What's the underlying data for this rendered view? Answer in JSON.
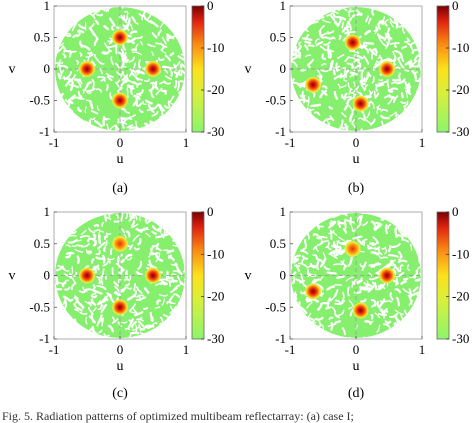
{
  "figure": {
    "caption": "Fig. 5. Radiation patterns of optimized multibeam reflectarray: (a) case I;"
  },
  "chart_data": [
    {
      "type": "heatmap",
      "panel_label": "(a)",
      "xlabel": "u",
      "ylabel": "v",
      "xlim": [
        -1,
        1
      ],
      "ylim": [
        -1,
        1
      ],
      "xticks": [
        "-1",
        "0",
        "1"
      ],
      "yticks": [
        "1",
        "0.5",
        "0",
        "-0.5",
        "-1"
      ],
      "colorbar": {
        "ticks": [
          "0",
          "-10",
          "-20",
          "-30"
        ],
        "range": [
          -30,
          0
        ]
      },
      "beams": [
        {
          "u": 0.0,
          "v": 0.5,
          "level_db": 0
        },
        {
          "u": -0.5,
          "v": 0.0,
          "level_db": 0
        },
        {
          "u": 0.5,
          "v": 0.0,
          "level_db": 0
        },
        {
          "u": 0.0,
          "v": -0.5,
          "level_db": 0
        }
      ],
      "dashed_crosshair": true
    },
    {
      "type": "heatmap",
      "panel_label": "(b)",
      "xlabel": "u",
      "ylabel": "v",
      "xlim": [
        -1,
        1
      ],
      "ylim": [
        -1,
        1
      ],
      "xticks": [
        "-1",
        "0",
        "1"
      ],
      "yticks": [
        "1",
        "0.5",
        "0",
        "-0.5",
        "-1"
      ],
      "colorbar": {
        "ticks": [
          "0",
          "-10",
          "-20",
          "-30"
        ],
        "range": [
          -30,
          0
        ]
      },
      "beams": [
        {
          "u": -0.05,
          "v": 0.42,
          "level_db": 0
        },
        {
          "u": -0.65,
          "v": -0.25,
          "level_db": 0
        },
        {
          "u": 0.47,
          "v": 0.0,
          "level_db": 0
        },
        {
          "u": 0.07,
          "v": -0.55,
          "level_db": 0
        }
      ],
      "dashed_crosshair": true
    },
    {
      "type": "heatmap",
      "panel_label": "(c)",
      "xlabel": "u",
      "ylabel": "v",
      "xlim": [
        -1,
        1
      ],
      "ylim": [
        -1,
        1
      ],
      "xticks": [
        "-1",
        "0",
        "1"
      ],
      "yticks": [
        "1",
        "0.5",
        "0",
        "-0.5",
        "-1"
      ],
      "colorbar": {
        "ticks": [
          "0",
          "-10",
          "-20",
          "-30"
        ],
        "range": [
          -30,
          0
        ]
      },
      "beams": [
        {
          "u": 0.0,
          "v": 0.5,
          "level_db": -6
        },
        {
          "u": -0.5,
          "v": 0.0,
          "level_db": 0
        },
        {
          "u": 0.5,
          "v": 0.0,
          "level_db": 0
        },
        {
          "u": 0.0,
          "v": -0.5,
          "level_db": 0
        }
      ],
      "dashed_crosshair": true
    },
    {
      "type": "heatmap",
      "panel_label": "(d)",
      "xlabel": "u",
      "ylabel": "v",
      "xlim": [
        -1,
        1
      ],
      "ylim": [
        -1,
        1
      ],
      "xticks": [
        "-1",
        "0",
        "1"
      ],
      "yticks": [
        "1",
        "0.5",
        "0",
        "-0.5",
        "-1"
      ],
      "colorbar": {
        "ticks": [
          "0",
          "-10",
          "-20",
          "-30"
        ],
        "range": [
          -30,
          0
        ]
      },
      "beams": [
        {
          "u": -0.05,
          "v": 0.42,
          "level_db": -6
        },
        {
          "u": -0.65,
          "v": -0.25,
          "level_db": 0
        },
        {
          "u": 0.47,
          "v": 0.0,
          "level_db": 0
        },
        {
          "u": 0.07,
          "v": -0.55,
          "level_db": 0
        }
      ],
      "dashed_crosshair": true
    }
  ],
  "colors": {
    "sidelobe_green": "#86f06e",
    "colormap": [
      "#8cf56c",
      "#d6f03c",
      "#fde21a",
      "#fb8a12",
      "#e02210",
      "#7a0000"
    ]
  }
}
